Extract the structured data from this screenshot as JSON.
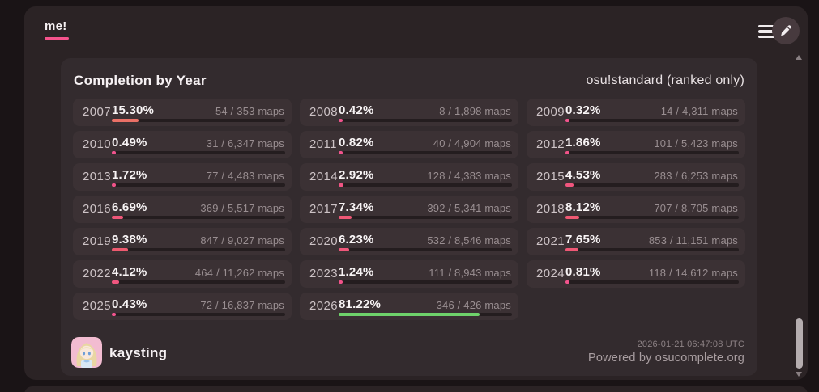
{
  "card": {
    "tab_label": "me!",
    "accent_color": "#f5538c",
    "icons": {
      "menu": "hamburger-three-bars",
      "edit": "pencil"
    }
  },
  "panel": {
    "title": "Completion by Year",
    "subtitle": "osu!standard (ranked only)"
  },
  "years": [
    {
      "year": "2007",
      "percent": "15.30%",
      "value": 15.3,
      "maps": "54 / 353 maps",
      "color": "#ea7066"
    },
    {
      "year": "2008",
      "percent": "0.42%",
      "value": 0.42,
      "maps": "8 / 1,898 maps",
      "color": "#f2548e"
    },
    {
      "year": "2009",
      "percent": "0.32%",
      "value": 0.32,
      "maps": "14 / 4,311 maps",
      "color": "#f2548e"
    },
    {
      "year": "2010",
      "percent": "0.49%",
      "value": 0.49,
      "maps": "31 / 6,347 maps",
      "color": "#f2548e"
    },
    {
      "year": "2011",
      "percent": "0.82%",
      "value": 0.82,
      "maps": "40 / 4,904 maps",
      "color": "#f2548d"
    },
    {
      "year": "2012",
      "percent": "1.86%",
      "value": 1.86,
      "maps": "101 / 5,423 maps",
      "color": "#f15388"
    },
    {
      "year": "2013",
      "percent": "1.72%",
      "value": 1.72,
      "maps": "77 / 4,483 maps",
      "color": "#f15389"
    },
    {
      "year": "2014",
      "percent": "2.92%",
      "value": 2.92,
      "maps": "128 / 4,383 maps",
      "color": "#f05584"
    },
    {
      "year": "2015",
      "percent": "4.53%",
      "value": 4.53,
      "maps": "283 / 6,253 maps",
      "color": "#f0567e"
    },
    {
      "year": "2016",
      "percent": "6.69%",
      "value": 6.69,
      "maps": "369 / 5,517 maps",
      "color": "#ef5779"
    },
    {
      "year": "2017",
      "percent": "7.34%",
      "value": 7.34,
      "maps": "392 / 5,341 maps",
      "color": "#ee5876"
    },
    {
      "year": "2018",
      "percent": "8.12%",
      "value": 8.12,
      "maps": "707 / 8,705 maps",
      "color": "#ee5973"
    },
    {
      "year": "2019",
      "percent": "9.38%",
      "value": 9.38,
      "maps": "847 / 9,027 maps",
      "color": "#ee5a6f"
    },
    {
      "year": "2020",
      "percent": "6.23%",
      "value": 6.23,
      "maps": "532 / 8,546 maps",
      "color": "#ef577a"
    },
    {
      "year": "2021",
      "percent": "7.65%",
      "value": 7.65,
      "maps": "853 / 11,151 maps",
      "color": "#ee5875"
    },
    {
      "year": "2022",
      "percent": "4.12%",
      "value": 4.12,
      "maps": "464 / 11,262 maps",
      "color": "#f0567f"
    },
    {
      "year": "2023",
      "percent": "1.24%",
      "value": 1.24,
      "maps": "111 / 8,943 maps",
      "color": "#f2538a"
    },
    {
      "year": "2024",
      "percent": "0.81%",
      "value": 0.81,
      "maps": "118 / 14,612 maps",
      "color": "#f2548d"
    },
    {
      "year": "2025",
      "percent": "0.43%",
      "value": 0.43,
      "maps": "72 / 16,837 maps",
      "color": "#f2548e"
    },
    {
      "year": "2026",
      "percent": "81.22%",
      "value": 81.22,
      "maps": "346 / 426 maps",
      "color": "#6fd36b"
    }
  ],
  "footer": {
    "username": "kaysting",
    "timestamp": "2026-01-21 06:47:08 UTC",
    "powered_by": "Powered by osucomplete.org"
  }
}
